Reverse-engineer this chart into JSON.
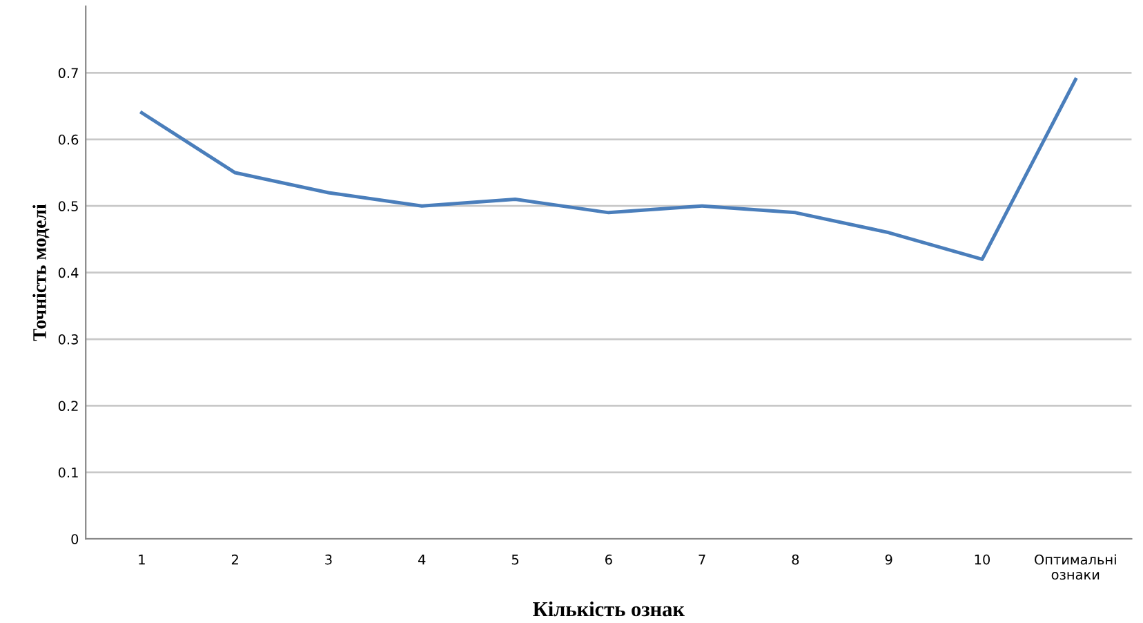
{
  "chart_data": {
    "type": "line",
    "xlabel": "Кількість ознак",
    "ylabel": "Точність моделі",
    "categories": [
      "1",
      "2",
      "3",
      "4",
      "5",
      "6",
      "7",
      "8",
      "9",
      "10",
      "Оптимальні\nознаки"
    ],
    "series": [
      {
        "color": "#4a7ebb",
        "values": [
          0.64,
          0.55,
          0.52,
          0.5,
          0.51,
          0.49,
          0.5,
          0.49,
          0.46,
          0.42,
          0.69
        ]
      }
    ],
    "ylim": [
      0,
      0.8
    ],
    "yticks": [
      0,
      0.1,
      0.2,
      0.3,
      0.4,
      0.5,
      0.6,
      0.7
    ],
    "grid": "y",
    "marker": "none",
    "line_style": "solid"
  }
}
